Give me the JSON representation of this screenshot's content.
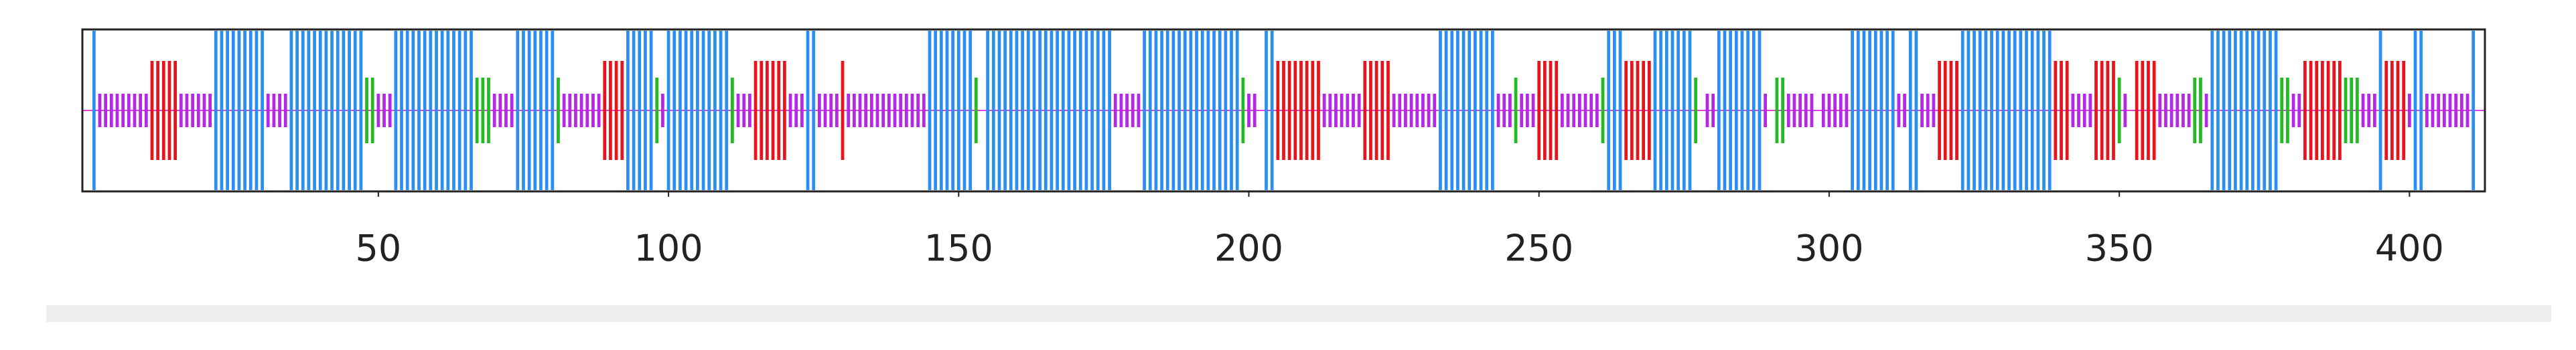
{
  "chart_data": {
    "type": "segment",
    "xlim": [
      -1,
      413
    ],
    "xticks": [
      50,
      100,
      150,
      200,
      250,
      300,
      350,
      400
    ],
    "series": [
      {
        "color": "#2b8ff2",
        "starts": [
          1,
          22,
          35,
          53,
          74,
          93,
          100,
          124,
          145,
          155,
          182,
          203,
          233,
          262,
          270,
          281,
          304,
          314,
          323,
          366,
          395,
          401,
          411
        ],
        "ends": [
          1,
          30,
          47,
          66,
          80,
          97,
          110,
          125,
          152,
          176,
          198,
          204,
          242,
          264,
          276,
          288,
          311,
          315,
          338,
          377,
          395,
          402,
          411
        ]
      },
      {
        "color": "#e8141c",
        "starts": [
          11,
          89,
          115,
          130,
          205,
          220,
          250,
          265,
          319,
          339,
          346,
          353,
          382,
          396
        ],
        "ends": [
          15,
          92,
          120,
          130,
          212,
          224,
          253,
          269,
          322,
          341,
          349,
          356,
          388,
          399
        ]
      },
      {
        "color": "#22bb22",
        "starts": [
          48,
          67,
          81,
          98,
          111,
          153,
          199,
          246,
          261,
          277,
          291,
          350,
          363,
          378,
          389
        ],
        "ends": [
          49,
          69,
          81,
          98,
          111,
          153,
          199,
          246,
          261,
          277,
          292,
          350,
          364,
          379,
          391
        ]
      },
      {
        "color": "#b428e6",
        "starts": [
          2,
          16,
          31,
          50,
          70,
          82,
          99,
          112,
          121,
          126,
          131,
          177,
          200,
          213,
          225,
          243,
          247,
          254,
          279,
          289,
          293,
          299,
          312,
          316,
          342,
          351,
          357,
          365,
          380,
          392,
          400,
          403
        ],
        "ends": [
          10,
          21,
          34,
          52,
          73,
          88,
          99,
          114,
          123,
          129,
          144,
          181,
          201,
          219,
          232,
          245,
          249,
          260,
          280,
          289,
          297,
          303,
          313,
          318,
          345,
          351,
          362,
          365,
          381,
          394,
          400,
          410
        ]
      }
    ]
  }
}
